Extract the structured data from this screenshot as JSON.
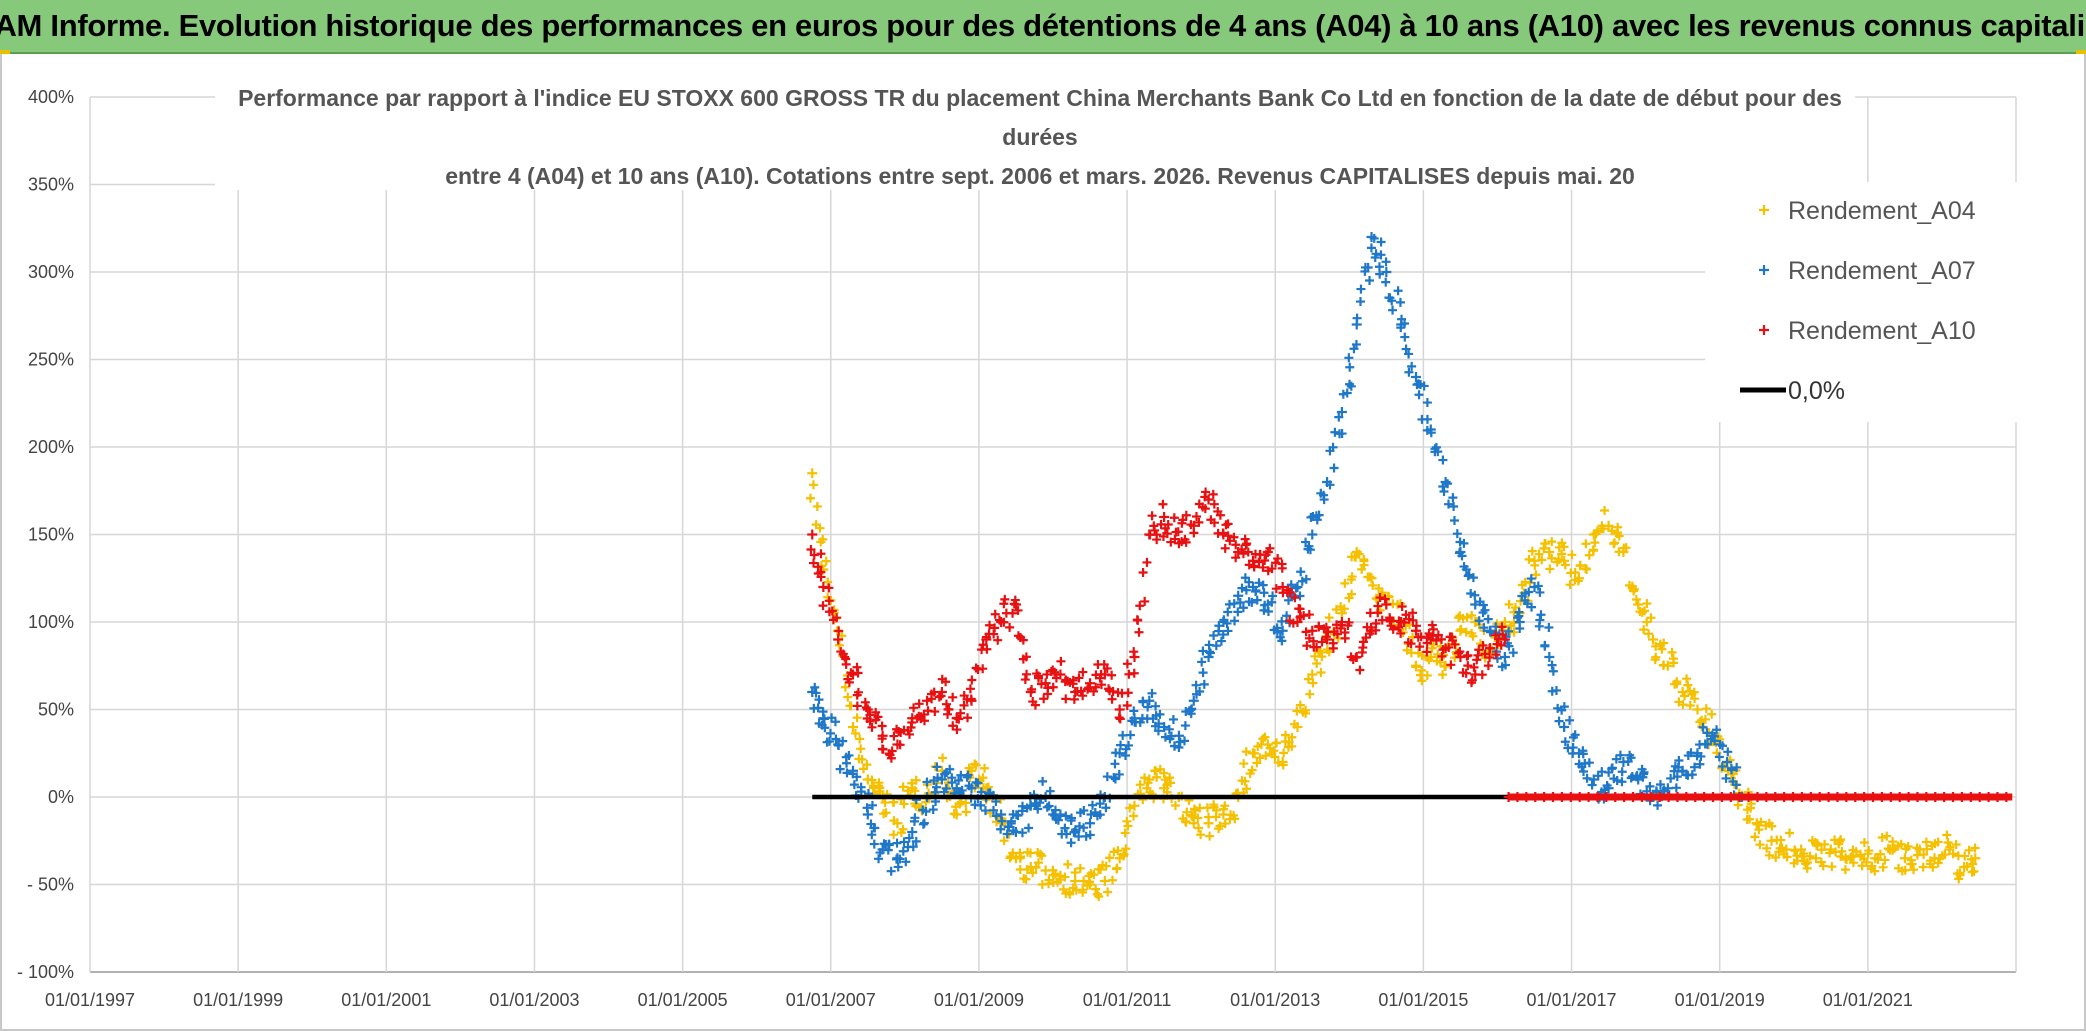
{
  "banner": {
    "title": "ADAM Informe. Evolution historique des performances en euros pour des détentions de 4 ans (A04) à 10 ans (A10) avec les revenus connus capitalisés"
  },
  "chart_data": {
    "type": "scatter",
    "title_lines": [
      "Performance par rapport à l'indice EU STOXX 600 GROSS TR  du placement China Merchants Bank Co Ltd en fonction de la date de début pour des",
      "durées",
      "entre 4 (A04) et 10 ans (A10). Cotations entre sept. 2006 et mars. 2026. Revenus CAPITALISES depuis mai. 20"
    ],
    "xlim": [
      1997.0,
      2023.0
    ],
    "ylim": [
      -100,
      400
    ],
    "y_ticks": [
      -100,
      -50,
      0,
      50,
      100,
      150,
      200,
      250,
      300,
      350,
      400
    ],
    "y_tick_labels": [
      "- 100%",
      "- 50%",
      "0%",
      "50%",
      "100%",
      "150%",
      "200%",
      "250%",
      "300%",
      "350%",
      "400%"
    ],
    "x_ticks": [
      1997,
      1999,
      2001,
      2003,
      2005,
      2007,
      2009,
      2011,
      2013,
      2015,
      2017,
      2019,
      2021
    ],
    "x_tick_labels": [
      "01/01/1997",
      "01/01/1999",
      "01/01/2001",
      "01/01/2003",
      "01/01/2005",
      "01/01/2007",
      "01/01/2009",
      "01/01/2011",
      "01/01/2013",
      "01/01/2015",
      "01/01/2017",
      "01/01/2019",
      "01/01/2021"
    ],
    "grid": true,
    "legend_position": "top-right",
    "series": [
      {
        "name": "Rendement_A04",
        "marker": "+",
        "color": "#f5c000",
        "x": [
          2006.75,
          2006.9,
          2007.1,
          2007.3,
          2007.5,
          2007.7,
          2007.9,
          2008.1,
          2008.3,
          2008.5,
          2008.7,
          2008.9,
          2009.1,
          2009.3,
          2009.5,
          2009.7,
          2009.9,
          2010.1,
          2010.3,
          2010.5,
          2010.7,
          2010.9,
          2011.1,
          2011.3,
          2011.5,
          2011.7,
          2011.9,
          2012.1,
          2012.3,
          2012.5,
          2012.7,
          2012.9,
          2013.1,
          2013.3,
          2013.5,
          2013.7,
          2013.9,
          2014.1,
          2014.3,
          2014.5,
          2014.7,
          2014.9,
          2015.1,
          2015.3,
          2015.5,
          2015.7,
          2015.9,
          2016.1,
          2016.3,
          2016.5,
          2016.7,
          2016.9,
          2017.1,
          2017.3,
          2017.5,
          2017.7,
          2017.9,
          2018.1,
          2018.3,
          2018.5,
          2018.7,
          2018.9,
          2019.1,
          2019.3,
          2019.5,
          2019.7,
          2019.9,
          2020.1,
          2020.3,
          2020.5,
          2020.7,
          2020.9,
          2021.1,
          2021.3,
          2021.5,
          2021.7,
          2021.9,
          2022.1,
          2022.3,
          2022.45
        ],
        "y": [
          185,
          130,
          95,
          40,
          10,
          0,
          -15,
          5,
          0,
          15,
          -10,
          15,
          5,
          -15,
          -35,
          -40,
          -42,
          -45,
          -48,
          -50,
          -48,
          -35,
          -5,
          10,
          5,
          0,
          -15,
          -15,
          -10,
          0,
          25,
          30,
          20,
          40,
          70,
          90,
          105,
          140,
          125,
          110,
          100,
          75,
          80,
          75,
          95,
          100,
          85,
          100,
          105,
          135,
          140,
          135,
          125,
          150,
          155,
          140,
          110,
          90,
          75,
          60,
          50,
          35,
          20,
          0,
          -15,
          -25,
          -30,
          -30,
          -35,
          -30,
          -35,
          -33,
          -35,
          -30,
          -35,
          -30,
          -35,
          -30,
          -40,
          -35
        ]
      },
      {
        "name": "Rendement_A07",
        "marker": "+",
        "color": "#1f77c8",
        "x": [
          2006.75,
          2006.9,
          2007.1,
          2007.3,
          2007.5,
          2007.7,
          2007.9,
          2008.1,
          2008.3,
          2008.5,
          2008.7,
          2008.9,
          2009.1,
          2009.3,
          2009.5,
          2009.7,
          2009.9,
          2010.1,
          2010.3,
          2010.5,
          2010.7,
          2010.9,
          2011.1,
          2011.3,
          2011.5,
          2011.7,
          2011.9,
          2012.1,
          2012.3,
          2012.5,
          2012.7,
          2012.9,
          2013.1,
          2013.3,
          2013.5,
          2013.7,
          2013.9,
          2014.1,
          2014.3,
          2014.5,
          2014.7,
          2014.9,
          2015.1,
          2015.3,
          2015.5,
          2015.7,
          2015.9,
          2016.1,
          2016.3,
          2016.5,
          2016.7,
          2016.9,
          2017.1,
          2017.3,
          2017.5,
          2017.7,
          2017.9,
          2018.1,
          2018.3,
          2018.5,
          2018.7,
          2018.9,
          2019.1,
          2019.3
        ],
        "y": [
          60,
          45,
          30,
          15,
          -10,
          -30,
          -35,
          -20,
          0,
          10,
          5,
          5,
          0,
          -10,
          -20,
          -5,
          0,
          -10,
          -20,
          -15,
          0,
          25,
          45,
          55,
          40,
          35,
          55,
          80,
          100,
          115,
          120,
          110,
          95,
          120,
          150,
          180,
          220,
          270,
          320,
          300,
          270,
          240,
          210,
          180,
          140,
          110,
          95,
          80,
          100,
          120,
          80,
          40,
          25,
          10,
          5,
          20,
          10,
          0,
          5,
          15,
          25,
          35,
          20,
          0
        ]
      },
      {
        "name": "Rendement_A10",
        "marker": "+",
        "color": "#e81010",
        "x": [
          2006.75,
          2006.9,
          2007.1,
          2007.3,
          2007.5,
          2007.7,
          2007.9,
          2008.1,
          2008.3,
          2008.5,
          2008.7,
          2008.9,
          2009.1,
          2009.3,
          2009.5,
          2009.7,
          2009.9,
          2010.1,
          2010.3,
          2010.5,
          2010.7,
          2010.9,
          2011.1,
          2011.3,
          2011.5,
          2011.7,
          2011.9,
          2012.1,
          2012.3,
          2012.5,
          2012.7,
          2012.9,
          2013.1,
          2013.3,
          2013.5,
          2013.7,
          2013.9,
          2014.1,
          2014.3,
          2014.5,
          2014.7,
          2014.9,
          2015.1,
          2015.3,
          2015.5,
          2015.7,
          2015.9,
          2016.1
        ],
        "y": [
          150,
          120,
          90,
          70,
          50,
          35,
          30,
          45,
          55,
          60,
          45,
          55,
          90,
          100,
          110,
          60,
          65,
          70,
          60,
          65,
          70,
          50,
          80,
          150,
          160,
          145,
          155,
          170,
          150,
          140,
          135,
          140,
          120,
          100,
          95,
          90,
          100,
          80,
          95,
          110,
          100,
          95,
          90,
          85,
          80,
          70,
          85,
          90
        ]
      },
      {
        "name": "0,0%",
        "marker": "line",
        "color": "#000000",
        "x": [
          2006.75,
          2016.15
        ],
        "y": [
          0,
          0
        ]
      }
    ],
    "red_zero_band": {
      "x": [
        2016.15,
        2022.95
      ],
      "y": 0
    }
  }
}
